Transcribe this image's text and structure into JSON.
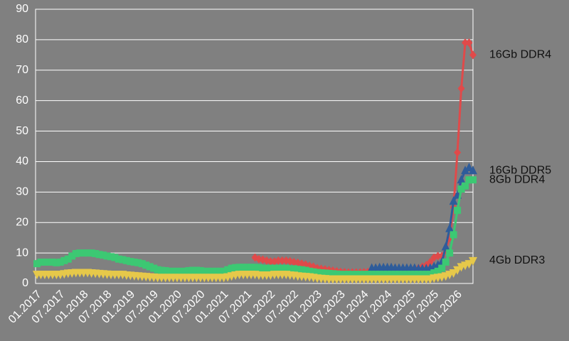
{
  "chart_data": {
    "type": "line",
    "categories": [
      "01.2017",
      null,
      null,
      null,
      null,
      null,
      "07.2017",
      null,
      null,
      null,
      null,
      null,
      "01.2018",
      null,
      null,
      null,
      null,
      null,
      "07.2018",
      null,
      null,
      null,
      null,
      null,
      "01.2019",
      null,
      null,
      null,
      null,
      null,
      "07.2019",
      null,
      null,
      null,
      null,
      null,
      "01.2020",
      null,
      null,
      null,
      null,
      null,
      "07.2020",
      null,
      null,
      null,
      null,
      null,
      "01.2021",
      null,
      null,
      null,
      null,
      null,
      "07.2021",
      null,
      null,
      null,
      null,
      null,
      "01.2022",
      null,
      null,
      null,
      null,
      null,
      "07.2022",
      null,
      null,
      null,
      null,
      null,
      "01.2023",
      null,
      null,
      null,
      null,
      null,
      "07.2023",
      null,
      null,
      null,
      null,
      null,
      "01.2024",
      null,
      null,
      null,
      null,
      null,
      "07.2024",
      null,
      null,
      null,
      null,
      null,
      "01.2025",
      null,
      null,
      null,
      null,
      null,
      "07.2025",
      null,
      null,
      null,
      null,
      null,
      "01.2026",
      null,
      null,
      null,
      null
    ],
    "series": [
      {
        "name": "16Gb DDR4",
        "color": "#e04a4a",
        "marker": "diamond",
        "values": [
          null,
          null,
          null,
          null,
          null,
          null,
          null,
          null,
          null,
          null,
          null,
          null,
          null,
          null,
          null,
          null,
          null,
          null,
          null,
          null,
          null,
          null,
          null,
          null,
          null,
          null,
          null,
          null,
          null,
          null,
          null,
          null,
          null,
          null,
          null,
          null,
          null,
          null,
          null,
          null,
          null,
          null,
          null,
          null,
          null,
          null,
          null,
          null,
          null,
          null,
          null,
          null,
          null,
          null,
          null,
          null,
          8.5,
          8,
          7.8,
          7.5,
          7.2,
          7.2,
          7.5,
          7.5,
          7.5,
          7.3,
          7,
          6.8,
          6.5,
          6.2,
          5.8,
          5.5,
          5,
          4.8,
          4.6,
          4.4,
          4.2,
          4,
          3.8,
          3.7,
          3.6,
          3.6,
          3.6,
          3.6,
          3.7,
          3.8,
          4,
          4,
          4,
          4,
          4,
          4,
          4,
          4.2,
          4.4,
          4.5,
          4.6,
          4.8,
          5,
          5.5,
          6,
          7,
          8.5,
          9,
          9,
          11,
          15,
          25,
          43,
          64,
          79,
          79,
          75
        ]
      },
      {
        "name": "16Gb DDR5",
        "color": "#2e5c9a",
        "marker": "triangle-up",
        "values": [
          null,
          null,
          null,
          null,
          null,
          null,
          null,
          null,
          null,
          null,
          null,
          null,
          null,
          null,
          null,
          null,
          null,
          null,
          null,
          null,
          null,
          null,
          null,
          null,
          null,
          null,
          null,
          null,
          null,
          null,
          null,
          null,
          null,
          null,
          null,
          null,
          null,
          null,
          null,
          null,
          null,
          null,
          null,
          null,
          null,
          null,
          null,
          null,
          null,
          null,
          null,
          null,
          null,
          null,
          null,
          null,
          null,
          null,
          null,
          null,
          null,
          null,
          null,
          null,
          null,
          null,
          null,
          null,
          null,
          null,
          null,
          null,
          null,
          null,
          null,
          null,
          null,
          null,
          null,
          null,
          null,
          null,
          null,
          null,
          null,
          null,
          5,
          5,
          5.2,
          5.2,
          5.2,
          5.2,
          5,
          5,
          5,
          5,
          5,
          5,
          4.8,
          4.8,
          4.8,
          5,
          5.5,
          6,
          7,
          12,
          18,
          27,
          29,
          34,
          37,
          38,
          37
        ]
      },
      {
        "name": "8Gb DDR4",
        "color": "#3cc873",
        "marker": "square",
        "values": [
          6.5,
          7,
          7,
          7,
          7,
          6.8,
          7,
          7.5,
          8,
          9,
          9.8,
          10,
          10,
          10,
          10,
          9.8,
          9.5,
          9.3,
          9,
          8.8,
          8.5,
          8,
          7.8,
          7.5,
          7.2,
          7,
          6.8,
          6.5,
          6,
          5.5,
          5,
          4.5,
          4.3,
          4.2,
          4,
          4,
          4,
          4,
          4,
          4.2,
          4.3,
          4.3,
          4.2,
          4,
          4,
          4,
          4,
          4,
          4,
          4.5,
          5,
          5.2,
          5.3,
          5.3,
          5.3,
          5.3,
          5.3,
          5.2,
          5,
          5,
          5,
          5,
          5,
          5,
          5,
          4.8,
          4.8,
          4.6,
          4.5,
          4.3,
          4,
          3.8,
          3.6,
          3.5,
          3.4,
          3.3,
          3.2,
          3.1,
          3,
          3,
          3,
          3,
          3,
          3,
          3,
          3,
          3,
          3,
          3,
          3,
          3,
          3,
          3,
          3,
          3,
          3,
          3,
          3,
          3,
          3,
          3,
          3,
          3.5,
          4,
          5,
          7,
          10,
          16,
          24,
          31,
          32,
          34,
          34
        ]
      },
      {
        "name": "4Gb DDR3",
        "color": "#e6c84a",
        "marker": "triangle-down",
        "values": [
          3,
          3,
          3,
          3,
          3,
          3,
          3,
          3.2,
          3.4,
          3.5,
          3.6,
          3.6,
          3.6,
          3.6,
          3.5,
          3.4,
          3.3,
          3.2,
          3.1,
          3,
          3,
          3,
          3,
          2.8,
          2.7,
          2.6,
          2.5,
          2.4,
          2.3,
          2.2,
          2.1,
          2,
          2,
          2,
          2,
          2,
          2,
          2,
          2,
          2,
          2,
          2,
          2,
          2,
          2,
          2,
          2,
          2,
          2,
          2.2,
          2.5,
          2.8,
          3,
          3,
          3,
          3,
          3,
          2.8,
          2.8,
          2.8,
          2.8,
          3,
          3,
          3,
          3,
          2.8,
          2.7,
          2.5,
          2.4,
          2.3,
          2.2,
          2,
          1.8,
          1.7,
          1.6,
          1.5,
          1.5,
          1.5,
          1.5,
          1.5,
          1.5,
          1.5,
          1.5,
          1.5,
          1.5,
          1.5,
          1.5,
          1.5,
          1.5,
          1.5,
          1.5,
          1.5,
          1.5,
          1.5,
          1.5,
          1.5,
          1.5,
          1.5,
          1.5,
          1.5,
          1.5,
          1.5,
          1.8,
          2,
          2.2,
          2.5,
          3,
          3.5,
          4.5,
          5.5,
          6,
          6.5,
          7.5
        ]
      }
    ],
    "ylim": [
      0,
      90
    ],
    "yticks": [
      0,
      10,
      20,
      30,
      40,
      50,
      60,
      70,
      80,
      90
    ],
    "grid": true
  }
}
